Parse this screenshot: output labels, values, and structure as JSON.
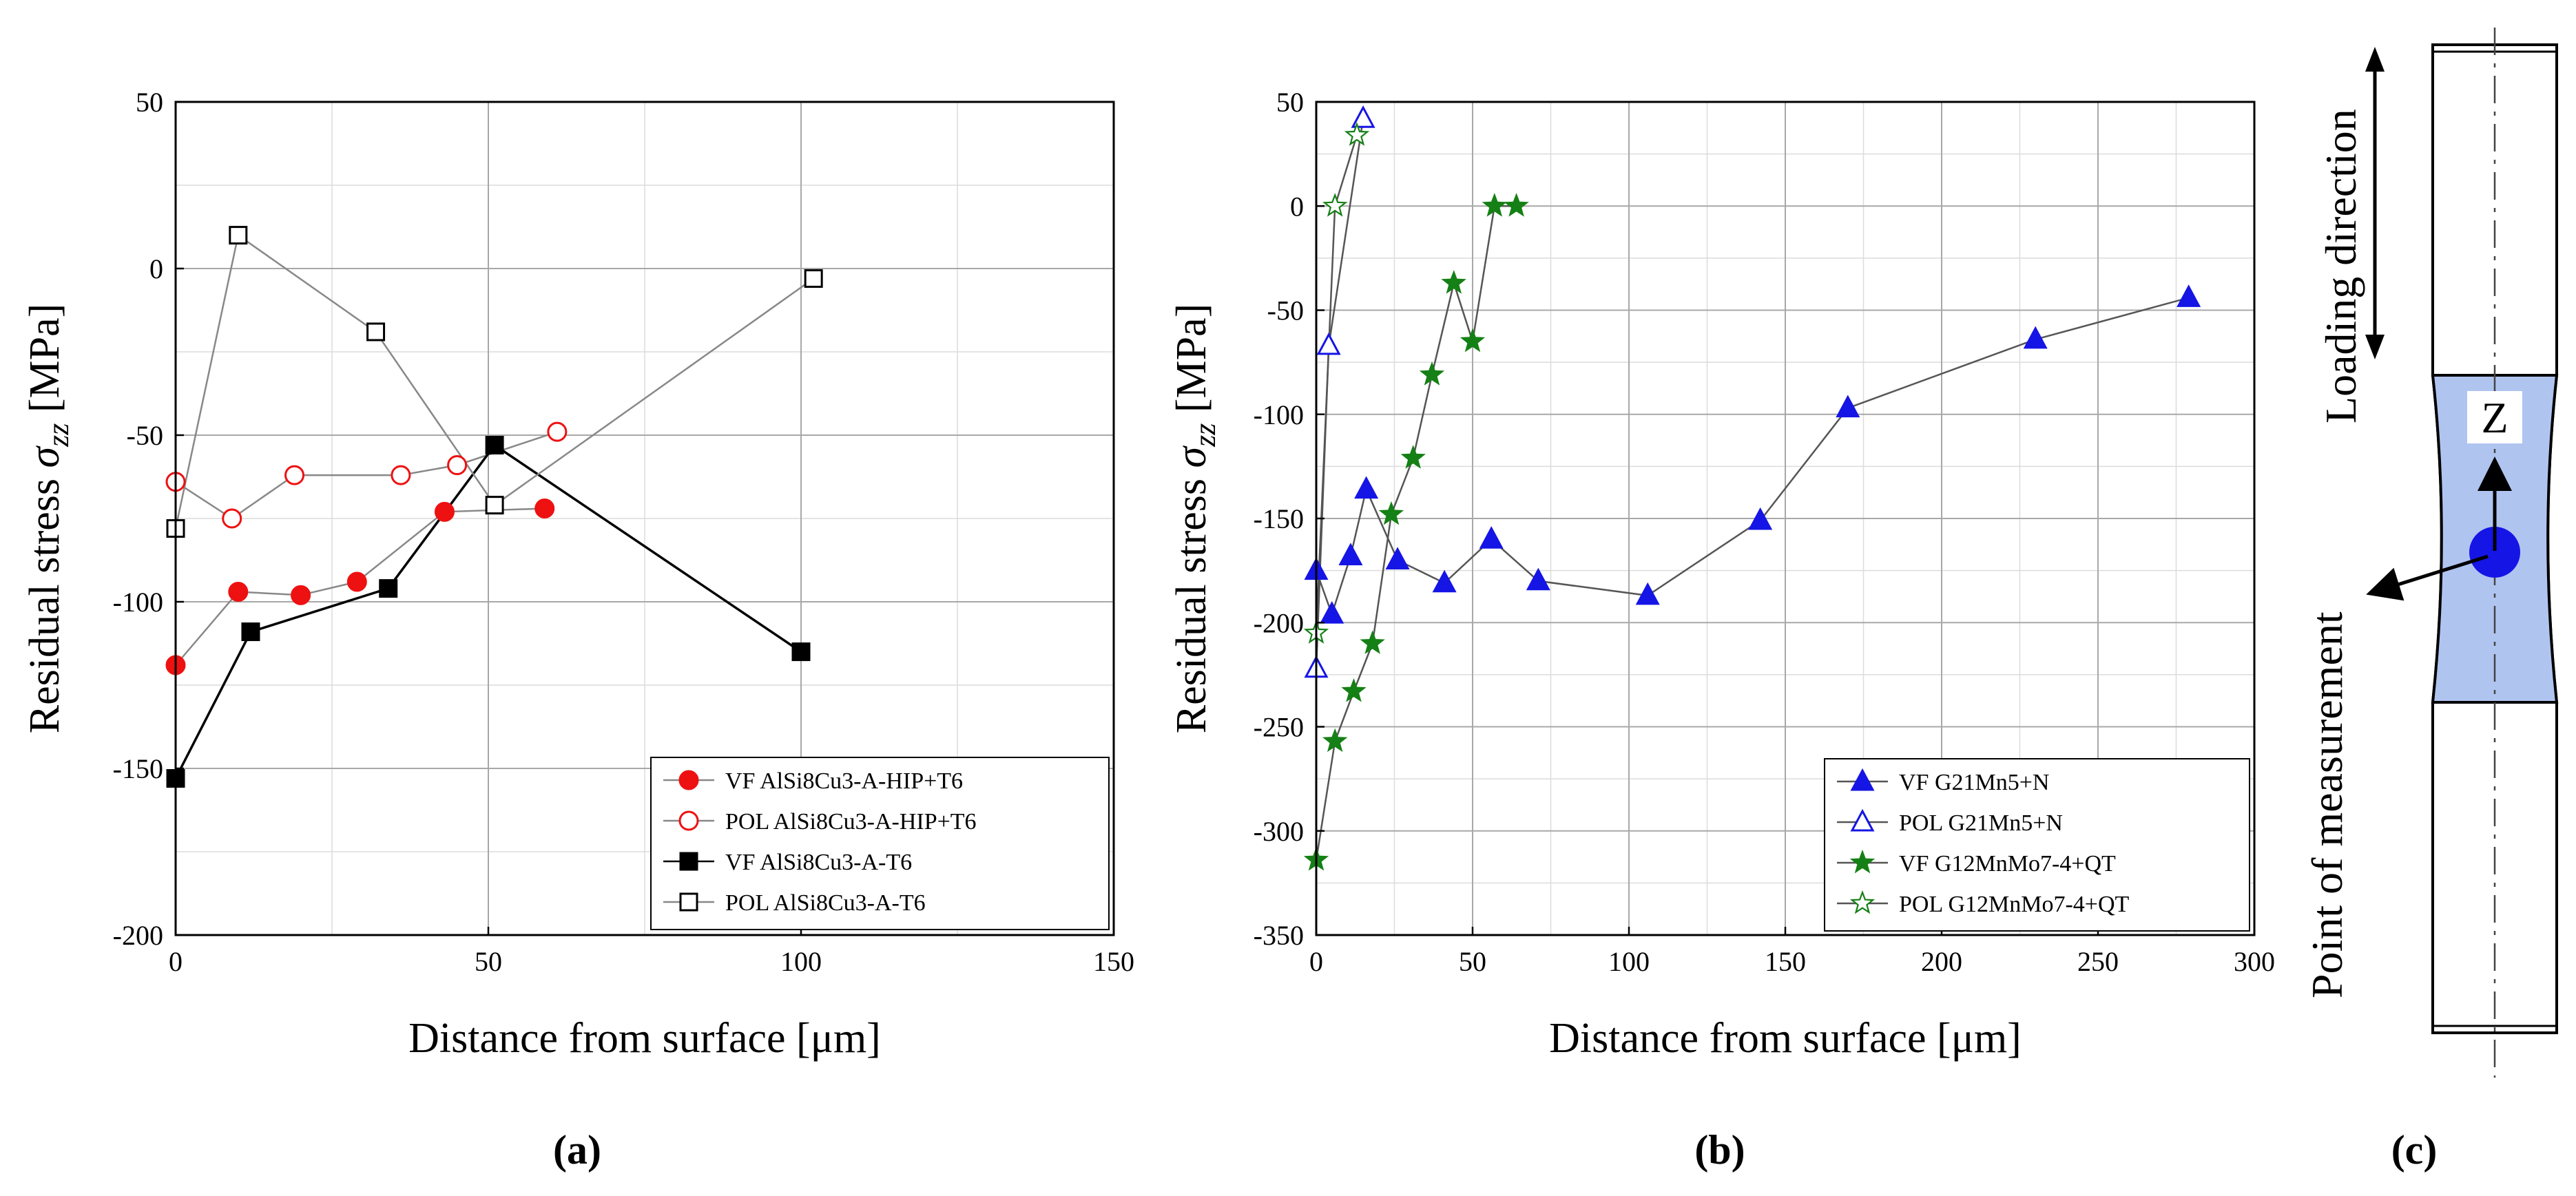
{
  "chart_data": [
    {
      "type": "line",
      "panel": "a",
      "caption": "(a)",
      "xlabel": "Distance from surface [μm]",
      "ylabel_text": "Residual stress ",
      "ylabel_symbol": "σ",
      "ylabel_sub": "zz",
      "ylabel_unit": " [MPa]",
      "xlim": [
        0,
        150
      ],
      "ylim": [
        -200,
        50
      ],
      "xticks": [
        0,
        50,
        100,
        150
      ],
      "yticks": [
        -200,
        -150,
        -100,
        -50,
        0,
        50
      ],
      "xtick_labels": [
        "0",
        "50",
        "100",
        "150"
      ],
      "ytick_labels": [
        "-200",
        "-150",
        "-100",
        "-50",
        "0",
        "50"
      ],
      "grid": true,
      "legend_position": "bottom-right",
      "series": [
        {
          "name": "VF AlSi8Cu3-A-HIP+T6",
          "marker": "circle",
          "filled": true,
          "color": "#ee1111",
          "line": "#888888",
          "x": [
            0,
            10,
            20,
            29,
            43,
            59
          ],
          "y": [
            -119,
            -97,
            -98,
            -94,
            -73,
            -72
          ]
        },
        {
          "name": "POL AlSi8Cu3-A-HIP+T6",
          "marker": "circle",
          "filled": false,
          "color": "#ee1111",
          "line": "#888888",
          "x": [
            0,
            9,
            19,
            36,
            45,
            61
          ],
          "y": [
            -64,
            -75,
            -62,
            -62,
            -59,
            -49
          ]
        },
        {
          "name": "VF AlSi8Cu3-A-T6",
          "marker": "square",
          "filled": true,
          "color": "#000000",
          "line": "#000000",
          "x": [
            0,
            12,
            34,
            51,
            100
          ],
          "y": [
            -153,
            -109,
            -96,
            -53,
            -115
          ]
        },
        {
          "name": "POL AlSi8Cu3-A-T6",
          "marker": "square",
          "filled": false,
          "color": "#000000",
          "line": "#888888",
          "x": [
            0,
            10,
            32,
            51,
            102
          ],
          "y": [
            -78,
            10,
            -19,
            -71,
            -3
          ]
        }
      ]
    },
    {
      "type": "line",
      "panel": "b",
      "caption": "(b)",
      "xlabel": "Distance from surface [μm]",
      "ylabel_text": "Residual stress ",
      "ylabel_symbol": "σ",
      "ylabel_sub": "zz",
      "ylabel_unit": " [MPa]",
      "xlim": [
        0,
        300
      ],
      "ylim": [
        -350,
        50
      ],
      "xticks": [
        0,
        50,
        100,
        150,
        200,
        250,
        300
      ],
      "yticks": [
        -350,
        -300,
        -250,
        -200,
        -150,
        -100,
        -50,
        0,
        50
      ],
      "xtick_labels": [
        "0",
        "50",
        "100",
        "150",
        "200",
        "250",
        "300"
      ],
      "ytick_labels": [
        "-350",
        "-300",
        "-250",
        "-200",
        "-150",
        "-100",
        "-50",
        "0",
        "50"
      ],
      "grid": true,
      "legend_position": "bottom-right",
      "series": [
        {
          "name": "VF G21Mn5+N",
          "marker": "triangle",
          "filled": true,
          "color": "#1515e6",
          "line": "#555555",
          "x": [
            0,
            5,
            11,
            16,
            26,
            41,
            56,
            71,
            106,
            142,
            170,
            230,
            279
          ],
          "y": [
            -175,
            -196,
            -168,
            -136,
            -170,
            -181,
            -160,
            -180,
            -187,
            -151,
            -97,
            -64,
            -44
          ]
        },
        {
          "name": "POL G21Mn5+N",
          "marker": "triangle",
          "filled": false,
          "color": "#1515e6",
          "line": "#555555",
          "x": [
            0,
            4,
            15
          ],
          "y": [
            -222,
            -67,
            42
          ]
        },
        {
          "name": "VF G12MnMo7-4+QT",
          "marker": "star",
          "filled": true,
          "color": "#158015",
          "line": "#555555",
          "x": [
            0,
            6,
            12,
            18,
            24,
            31,
            37,
            44,
            50,
            57,
            64
          ],
          "y": [
            -314,
            -257,
            -233,
            -210,
            -148,
            -121,
            -81,
            -37,
            -65,
            0,
            0
          ]
        },
        {
          "name": "POL G12MnMo7-4+QT",
          "marker": "star",
          "filled": false,
          "color": "#158015",
          "line": "#555555",
          "x": [
            0,
            6,
            13
          ],
          "y": [
            -205,
            0,
            34
          ]
        }
      ]
    }
  ],
  "diagram": {
    "caption": "(c)",
    "loading_direction": "Loading direction",
    "point_of_measurement": "Point of measurement",
    "axis_label": "Z",
    "highlight_color": "#b0c4f0",
    "point_color": "#1515e6"
  }
}
